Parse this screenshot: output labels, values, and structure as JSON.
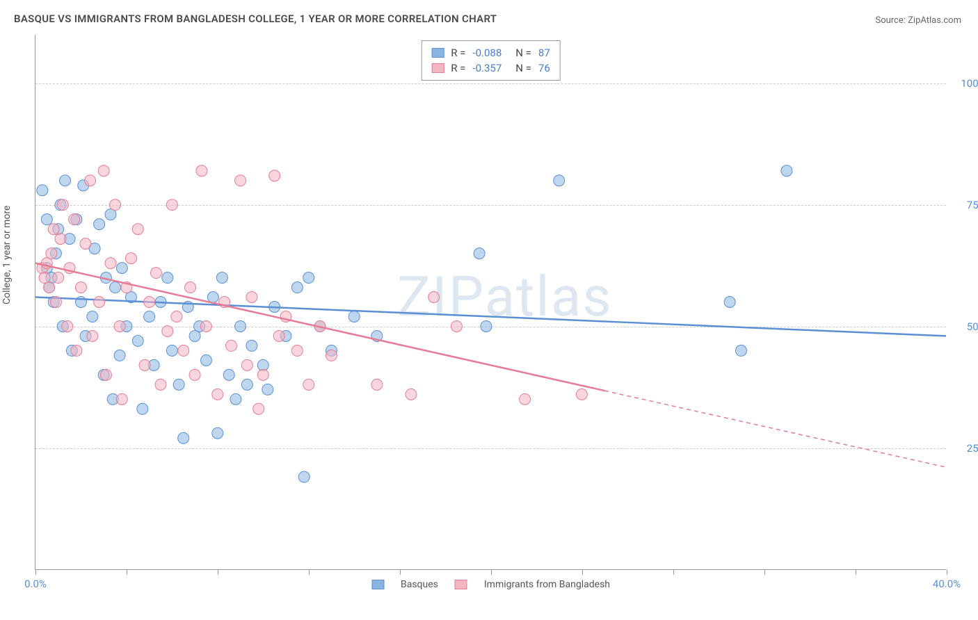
{
  "title": "BASQUE VS IMMIGRANTS FROM BANGLADESH COLLEGE, 1 YEAR OR MORE CORRELATION CHART",
  "source": "Source: ZipAtlas.com",
  "watermark": "ZIPatlas",
  "yAxisLabel": "College, 1 year or more",
  "chart": {
    "type": "scatter",
    "xlim": [
      0,
      40
    ],
    "ylim": [
      0,
      110
    ],
    "xTicks": [
      0,
      4,
      8,
      12,
      16,
      20,
      24,
      28,
      32,
      36,
      40
    ],
    "xTickLabels": {
      "0": "0.0%",
      "40": "40.0%"
    },
    "yTicks": [
      25,
      50,
      75,
      100
    ],
    "yTickLabels": {
      "25": "25.0%",
      "50": "50.0%",
      "75": "75.0%",
      "100": "100.0%"
    },
    "gridColor": "#cccccc",
    "background": "#ffffff",
    "markerRadius": 8,
    "markerOpacity": 0.55,
    "series": [
      {
        "name": "Basques",
        "color": "#88b5e0",
        "stroke": "#5a8fd6",
        "R": "-0.088",
        "N": "87",
        "trend": {
          "x1": 0,
          "y1": 56,
          "x2": 40,
          "y2": 48,
          "solidUntil": 40
        },
        "points": [
          [
            0.3,
            78
          ],
          [
            0.5,
            62
          ],
          [
            0.5,
            72
          ],
          [
            0.6,
            58
          ],
          [
            0.7,
            60
          ],
          [
            0.8,
            55
          ],
          [
            0.9,
            65
          ],
          [
            1.0,
            70
          ],
          [
            1.1,
            75
          ],
          [
            1.2,
            50
          ],
          [
            1.3,
            80
          ],
          [
            1.5,
            68
          ],
          [
            1.6,
            45
          ],
          [
            1.8,
            72
          ],
          [
            2.0,
            55
          ],
          [
            2.1,
            79
          ],
          [
            2.2,
            48
          ],
          [
            2.5,
            52
          ],
          [
            2.6,
            66
          ],
          [
            2.8,
            71
          ],
          [
            3.0,
            40
          ],
          [
            3.1,
            60
          ],
          [
            3.3,
            73
          ],
          [
            3.4,
            35
          ],
          [
            3.5,
            58
          ],
          [
            3.7,
            44
          ],
          [
            3.8,
            62
          ],
          [
            4.0,
            50
          ],
          [
            4.2,
            56
          ],
          [
            4.5,
            47
          ],
          [
            4.7,
            33
          ],
          [
            5.0,
            52
          ],
          [
            5.2,
            42
          ],
          [
            5.5,
            55
          ],
          [
            5.8,
            60
          ],
          [
            6.0,
            45
          ],
          [
            6.3,
            38
          ],
          [
            6.5,
            27
          ],
          [
            6.7,
            54
          ],
          [
            7.0,
            48
          ],
          [
            7.2,
            50
          ],
          [
            7.5,
            43
          ],
          [
            7.8,
            56
          ],
          [
            8.0,
            28
          ],
          [
            8.2,
            60
          ],
          [
            8.5,
            40
          ],
          [
            8.8,
            35
          ],
          [
            9.0,
            50
          ],
          [
            9.3,
            38
          ],
          [
            9.5,
            46
          ],
          [
            10.0,
            42
          ],
          [
            10.2,
            37
          ],
          [
            10.5,
            54
          ],
          [
            11.0,
            48
          ],
          [
            11.5,
            58
          ],
          [
            11.8,
            19
          ],
          [
            12.0,
            60
          ],
          [
            12.5,
            50
          ],
          [
            13.0,
            45
          ],
          [
            14.0,
            52
          ],
          [
            15.0,
            48
          ],
          [
            19.5,
            65
          ],
          [
            19.8,
            50
          ],
          [
            23.0,
            80
          ],
          [
            30.5,
            55
          ],
          [
            31.0,
            45
          ],
          [
            33.0,
            82
          ]
        ]
      },
      {
        "name": "Immigrants from Bangladesh",
        "color": "#f4b5c3",
        "stroke": "#e77b95",
        "R": "-0.357",
        "N": "76",
        "trend": {
          "x1": 0,
          "y1": 63,
          "x2": 40,
          "y2": 21,
          "solidUntil": 25
        },
        "points": [
          [
            0.3,
            62
          ],
          [
            0.4,
            60
          ],
          [
            0.5,
            63
          ],
          [
            0.6,
            58
          ],
          [
            0.7,
            65
          ],
          [
            0.8,
            70
          ],
          [
            0.9,
            55
          ],
          [
            1.0,
            60
          ],
          [
            1.1,
            68
          ],
          [
            1.2,
            75
          ],
          [
            1.4,
            50
          ],
          [
            1.5,
            62
          ],
          [
            1.7,
            72
          ],
          [
            1.8,
            45
          ],
          [
            2.0,
            58
          ],
          [
            2.2,
            67
          ],
          [
            2.4,
            80
          ],
          [
            2.5,
            48
          ],
          [
            2.8,
            55
          ],
          [
            3.0,
            82
          ],
          [
            3.1,
            40
          ],
          [
            3.3,
            63
          ],
          [
            3.5,
            75
          ],
          [
            3.7,
            50
          ],
          [
            3.8,
            35
          ],
          [
            4.0,
            58
          ],
          [
            4.2,
            64
          ],
          [
            4.5,
            70
          ],
          [
            4.8,
            42
          ],
          [
            5.0,
            55
          ],
          [
            5.3,
            61
          ],
          [
            5.5,
            38
          ],
          [
            5.8,
            49
          ],
          [
            6.0,
            75
          ],
          [
            6.2,
            52
          ],
          [
            6.5,
            45
          ],
          [
            6.8,
            58
          ],
          [
            7.0,
            40
          ],
          [
            7.3,
            82
          ],
          [
            7.5,
            50
          ],
          [
            8.0,
            36
          ],
          [
            8.3,
            55
          ],
          [
            8.6,
            46
          ],
          [
            9.0,
            80
          ],
          [
            9.3,
            42
          ],
          [
            9.5,
            56
          ],
          [
            9.8,
            33
          ],
          [
            10.0,
            40
          ],
          [
            10.5,
            81
          ],
          [
            10.7,
            48
          ],
          [
            11.0,
            52
          ],
          [
            11.5,
            45
          ],
          [
            12.0,
            38
          ],
          [
            12.5,
            50
          ],
          [
            13.0,
            44
          ],
          [
            15.0,
            38
          ],
          [
            16.5,
            36
          ],
          [
            17.5,
            56
          ],
          [
            18.5,
            50
          ],
          [
            21.5,
            35
          ],
          [
            24.0,
            36
          ]
        ]
      }
    ]
  }
}
